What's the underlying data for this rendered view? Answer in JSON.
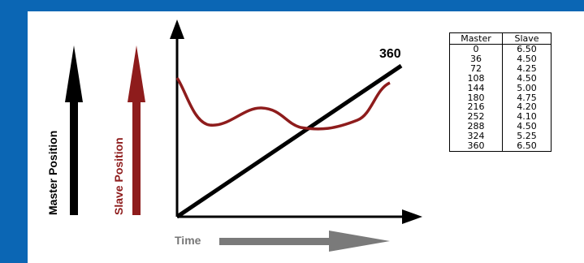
{
  "diagram": {
    "master_axis_label": "Master Position",
    "slave_axis_label": "Slave Position",
    "time_label": "Time",
    "peak_label": "360",
    "colors": {
      "frame": "#0b66b4",
      "master": "#000000",
      "slave": "#8e1c1c",
      "time_arrow": "#7a7a7a"
    }
  },
  "table": {
    "headers": [
      "Master",
      "Slave"
    ],
    "rows": [
      [
        "0",
        "6.50"
      ],
      [
        "36",
        "4.50"
      ],
      [
        "72",
        "4.25"
      ],
      [
        "108",
        "4.50"
      ],
      [
        "144",
        "5.00"
      ],
      [
        "180",
        "4.75"
      ],
      [
        "216",
        "4.20"
      ],
      [
        "252",
        "4.10"
      ],
      [
        "288",
        "4.50"
      ],
      [
        "324",
        "5.25"
      ],
      [
        "360",
        "6.50"
      ]
    ]
  }
}
